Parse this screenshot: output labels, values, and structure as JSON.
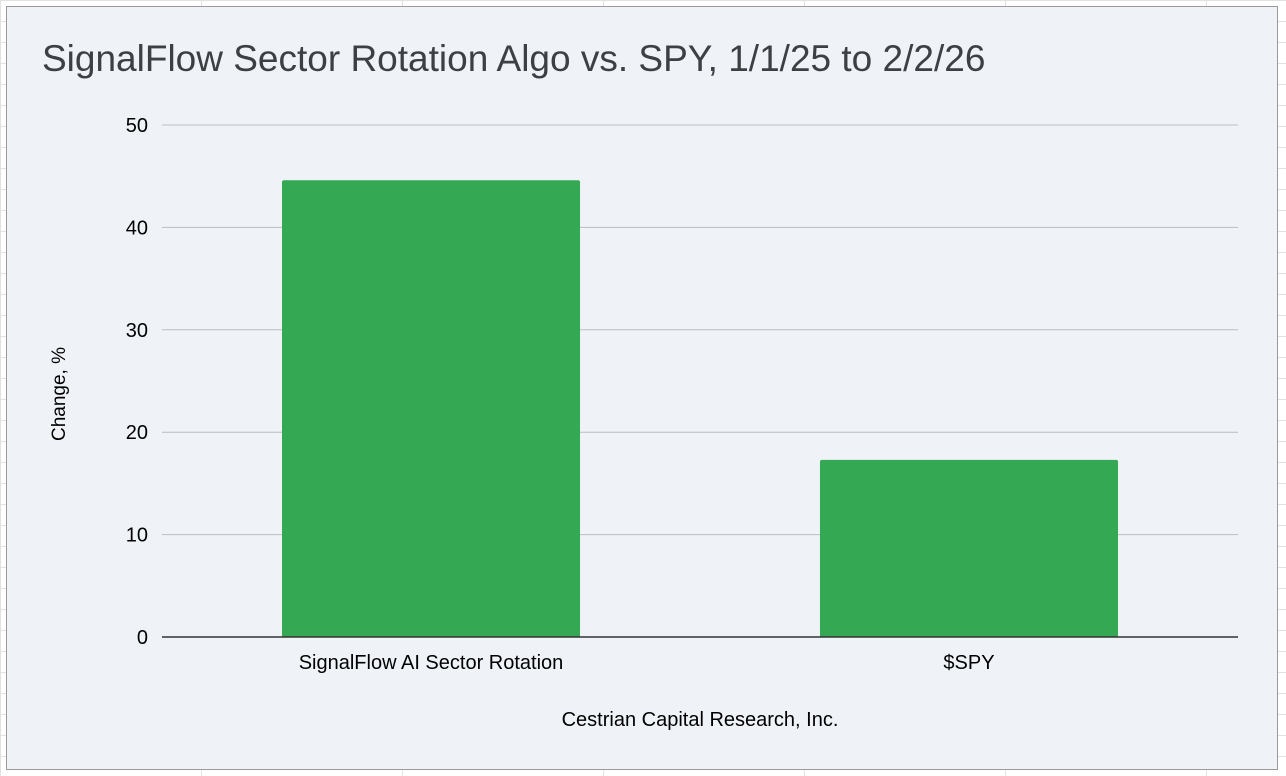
{
  "chart_data": {
    "type": "bar",
    "title": "SignalFlow Sector Rotation Algo vs. SPY, 1/1/25 to 2/2/26",
    "categories": [
      "SignalFlow AI Sector Rotation",
      "$SPY"
    ],
    "values": [
      44.6,
      17.3
    ],
    "ylabel": "Change, %",
    "xlabel": "Cestrian Capital Research, Inc.",
    "ylim": [
      0,
      50
    ],
    "yticks": [
      0,
      10,
      20,
      30,
      40,
      50
    ],
    "grid": true,
    "bar_color": "#34a853",
    "background_color": "#eff3f8"
  }
}
